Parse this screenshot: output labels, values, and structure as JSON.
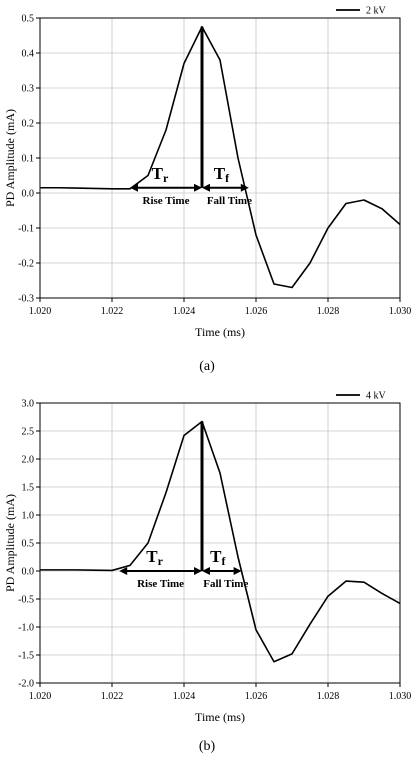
{
  "chart_data": [
    {
      "type": "line",
      "panel": "a",
      "caption": "(a)",
      "xlabel": "Time (ms)",
      "ylabel": "PD Amplitude (mA)",
      "xlim": [
        1.02,
        1.03
      ],
      "ylim": [
        -0.3,
        0.5
      ],
      "x_ticks": [
        1.02,
        1.022,
        1.024,
        1.026,
        1.028,
        1.03
      ],
      "x_tick_labels": [
        "1.020",
        "1.022",
        "1.024",
        "1.026",
        "1.028",
        "1.030"
      ],
      "y_ticks": [
        -0.3,
        -0.2,
        -0.1,
        0.0,
        0.1,
        0.2,
        0.3,
        0.4,
        0.5
      ],
      "y_tick_labels": [
        "-0.3",
        "-0.2",
        "-0.1",
        "0.0",
        "0.1",
        "0.2",
        "0.3",
        "0.4",
        "0.5"
      ],
      "grid": true,
      "legend_position": "top-right",
      "series": [
        {
          "name": "2 kV",
          "color": "#000000",
          "x": [
            1.02,
            1.0205,
            1.021,
            1.0215,
            1.022,
            1.0225,
            1.023,
            1.0235,
            1.024,
            1.0245,
            1.025,
            1.0255,
            1.026,
            1.0265,
            1.027,
            1.0275,
            1.028,
            1.0285,
            1.029,
            1.0295,
            1.03
          ],
          "y": [
            0.015,
            0.015,
            0.014,
            0.013,
            0.012,
            0.012,
            0.05,
            0.18,
            0.37,
            0.475,
            0.38,
            0.1,
            -0.12,
            -0.26,
            -0.27,
            -0.2,
            -0.1,
            -0.03,
            -0.02,
            -0.045,
            -0.09
          ]
        }
      ],
      "annotations": {
        "peak_x": 1.0245,
        "rise_start_x": 1.0225,
        "fall_end_x": 1.0258,
        "arrow_y": 0.015,
        "rise_symbol": "T",
        "rise_subscript": "r",
        "fall_symbol": "T",
        "fall_subscript": "f",
        "rise_label": "Rise Time",
        "fall_label": "Fall Time"
      }
    },
    {
      "type": "line",
      "panel": "b",
      "caption": "(b)",
      "xlabel": "Time (ms)",
      "ylabel": "PD Amplitude (mA)",
      "xlim": [
        1.02,
        1.03
      ],
      "ylim": [
        -2.0,
        3.0
      ],
      "x_ticks": [
        1.02,
        1.022,
        1.024,
        1.026,
        1.028,
        1.03
      ],
      "x_tick_labels": [
        "1.020",
        "1.022",
        "1.024",
        "1.026",
        "1.028",
        "1.030"
      ],
      "y_ticks": [
        -2.0,
        -1.5,
        -1.0,
        -0.5,
        0.0,
        0.5,
        1.0,
        1.5,
        2.0,
        2.5,
        3.0
      ],
      "y_tick_labels": [
        "-2.0",
        "-1.5",
        "-1.0",
        "-0.5",
        "0.0",
        "0.5",
        "1.0",
        "1.5",
        "2.0",
        "2.5",
        "3.0"
      ],
      "grid": true,
      "legend_position": "top-right",
      "series": [
        {
          "name": "4 kV",
          "color": "#000000",
          "x": [
            1.02,
            1.0205,
            1.021,
            1.0215,
            1.022,
            1.0225,
            1.023,
            1.0235,
            1.024,
            1.0245,
            1.025,
            1.0255,
            1.026,
            1.0265,
            1.027,
            1.0275,
            1.028,
            1.0285,
            1.029,
            1.0295,
            1.03
          ],
          "y": [
            0.02,
            0.02,
            0.02,
            0.015,
            0.01,
            0.1,
            0.5,
            1.4,
            2.42,
            2.67,
            1.75,
            0.25,
            -1.05,
            -1.62,
            -1.48,
            -0.95,
            -0.45,
            -0.18,
            -0.2,
            -0.4,
            -0.58
          ]
        }
      ],
      "annotations": {
        "peak_x": 1.0245,
        "rise_start_x": 1.0222,
        "fall_end_x": 1.0256,
        "arrow_y": 0.0,
        "rise_symbol": "T",
        "rise_subscript": "r",
        "fall_symbol": "T",
        "fall_subscript": "f",
        "rise_label": "Rise Time",
        "fall_label": "Fall Time"
      }
    }
  ]
}
